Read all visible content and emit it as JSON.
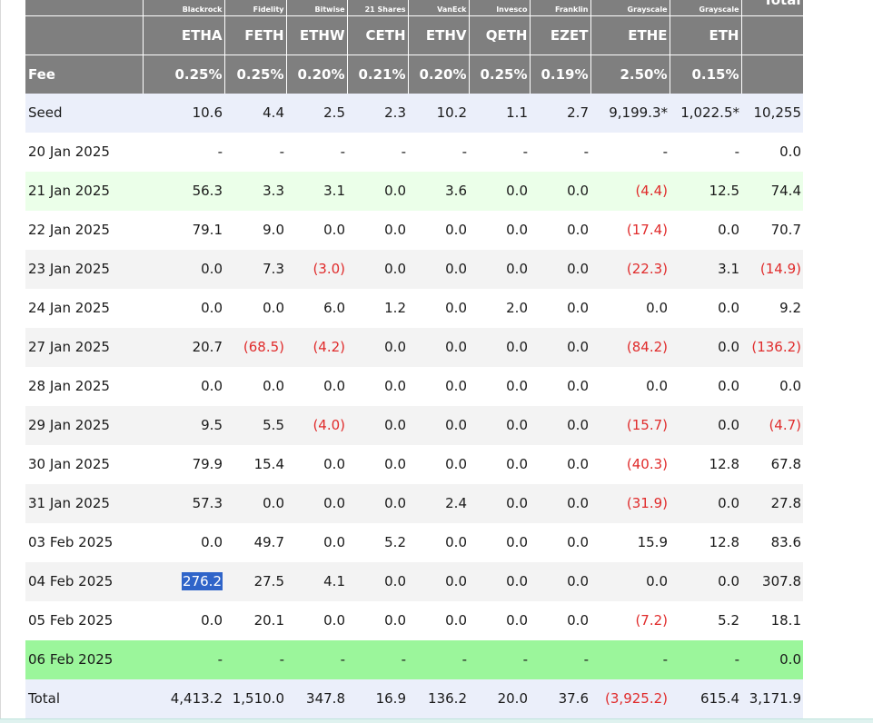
{
  "table": {
    "issuers": [
      "",
      "Blackrock",
      "Fidelity",
      "Bitwise",
      "21 Shares",
      "VanEck",
      "Invesco",
      "Franklin",
      "Grayscale",
      "Grayscale",
      "Total"
    ],
    "tickers": [
      "",
      "ETHA",
      "FETH",
      "ETHW",
      "CETH",
      "ETHV",
      "QETH",
      "EZET",
      "ETHE",
      "ETH",
      ""
    ],
    "fees": [
      "Fee",
      "0.25%",
      "0.25%",
      "0.20%",
      "0.21%",
      "0.20%",
      "0.25%",
      "0.19%",
      "2.50%",
      "0.15%",
      ""
    ],
    "rows": [
      {
        "style": "seed",
        "cells": [
          "Seed",
          "10.6",
          "4.4",
          "2.5",
          "2.3",
          "10.2",
          "1.1",
          "2.7",
          "9,199.3*",
          "1,022.5*",
          "10,255"
        ],
        "negative": []
      },
      {
        "style": "plain",
        "cells": [
          "20 Jan 2025",
          "-",
          "-",
          "-",
          "-",
          "-",
          "-",
          "-",
          "-",
          "-",
          "0.0"
        ],
        "negative": []
      },
      {
        "style": "lightgreen",
        "cells": [
          "21 Jan 2025",
          "56.3",
          "3.3",
          "3.1",
          "0.0",
          "3.6",
          "0.0",
          "0.0",
          "(4.4)",
          "12.5",
          "74.4"
        ],
        "negative": [
          8
        ]
      },
      {
        "style": "plain",
        "cells": [
          "22 Jan 2025",
          "79.1",
          "9.0",
          "0.0",
          "0.0",
          "0.0",
          "0.0",
          "0.0",
          "(17.4)",
          "0.0",
          "70.7"
        ],
        "negative": [
          8
        ]
      },
      {
        "style": "stripe",
        "cells": [
          "23 Jan 2025",
          "0.0",
          "7.3",
          "(3.0)",
          "0.0",
          "0.0",
          "0.0",
          "0.0",
          "(22.3)",
          "3.1",
          "(14.9)"
        ],
        "negative": [
          3,
          8,
          10
        ]
      },
      {
        "style": "plain",
        "cells": [
          "24 Jan 2025",
          "0.0",
          "0.0",
          "6.0",
          "1.2",
          "0.0",
          "2.0",
          "0.0",
          "0.0",
          "0.0",
          "9.2"
        ],
        "negative": []
      },
      {
        "style": "stripe",
        "cells": [
          "27 Jan 2025",
          "20.7",
          "(68.5)",
          "(4.2)",
          "0.0",
          "0.0",
          "0.0",
          "0.0",
          "(84.2)",
          "0.0",
          "(136.2)"
        ],
        "negative": [
          2,
          3,
          8,
          10
        ]
      },
      {
        "style": "plain",
        "cells": [
          "28 Jan 2025",
          "0.0",
          "0.0",
          "0.0",
          "0.0",
          "0.0",
          "0.0",
          "0.0",
          "0.0",
          "0.0",
          "0.0"
        ],
        "negative": []
      },
      {
        "style": "stripe",
        "cells": [
          "29 Jan 2025",
          "9.5",
          "5.5",
          "(4.0)",
          "0.0",
          "0.0",
          "0.0",
          "0.0",
          "(15.7)",
          "0.0",
          "(4.7)"
        ],
        "negative": [
          3,
          8,
          10
        ]
      },
      {
        "style": "plain",
        "cells": [
          "30 Jan 2025",
          "79.9",
          "15.4",
          "0.0",
          "0.0",
          "0.0",
          "0.0",
          "0.0",
          "(40.3)",
          "12.8",
          "67.8"
        ],
        "negative": [
          8
        ]
      },
      {
        "style": "stripe",
        "cells": [
          "31 Jan 2025",
          "57.3",
          "0.0",
          "0.0",
          "0.0",
          "2.4",
          "0.0",
          "0.0",
          "(31.9)",
          "0.0",
          "27.8"
        ],
        "negative": [
          8
        ]
      },
      {
        "style": "plain",
        "cells": [
          "03 Feb 2025",
          "0.0",
          "49.7",
          "0.0",
          "5.2",
          "0.0",
          "0.0",
          "0.0",
          "15.9",
          "12.8",
          "83.6"
        ],
        "negative": []
      },
      {
        "style": "stripe",
        "cells": [
          "04 Feb 2025",
          "276.2",
          "27.5",
          "4.1",
          "0.0",
          "0.0",
          "0.0",
          "0.0",
          "0.0",
          "0.0",
          "307.8"
        ],
        "negative": [],
        "highlight": [
          1
        ]
      },
      {
        "style": "plain",
        "cells": [
          "05 Feb 2025",
          "0.0",
          "20.1",
          "0.0",
          "0.0",
          "0.0",
          "0.0",
          "0.0",
          "(7.2)",
          "5.2",
          "18.1"
        ],
        "negative": [
          8
        ]
      },
      {
        "style": "green",
        "cells": [
          "06 Feb 2025",
          "-",
          "-",
          "-",
          "-",
          "-",
          "-",
          "-",
          "-",
          "-",
          "0.0"
        ],
        "negative": []
      },
      {
        "style": "total",
        "cells": [
          "Total",
          "4,413.2",
          "1,510.0",
          "347.8",
          "16.9",
          "136.2",
          "20.0",
          "37.6",
          "(3,925.2)",
          "615.4",
          "3,171.9"
        ],
        "negative": [
          8
        ]
      }
    ]
  },
  "colors": {
    "header_gray": "#7f7f7f",
    "negative_red": "#e02b2b",
    "selection_blue": "#2f64c9",
    "latest_row_green": "#9bf69b"
  }
}
